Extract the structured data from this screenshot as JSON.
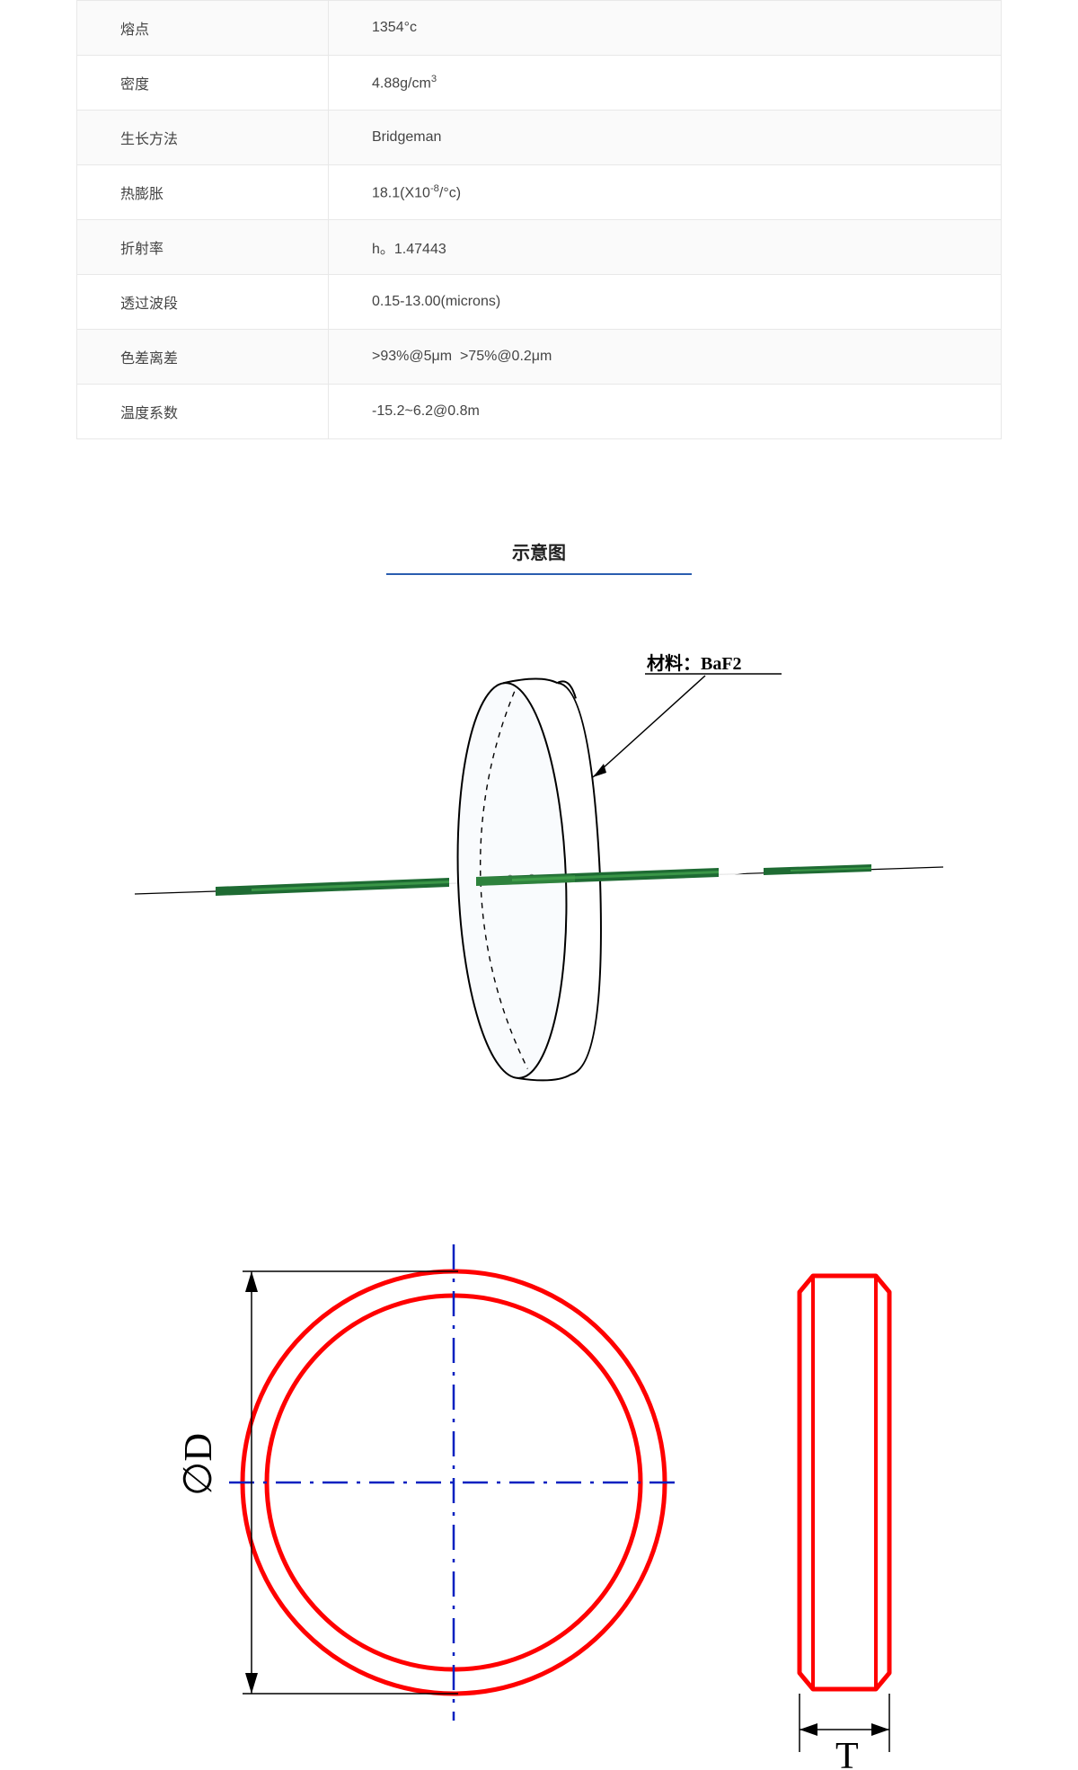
{
  "table": {
    "rows": [
      {
        "label": "熔点",
        "value_html": "1354°c"
      },
      {
        "label": "密度",
        "value_html": "4.88g/cm<sup>3</sup>"
      },
      {
        "label": "生长方法",
        "value_html": "Bridgeman"
      },
      {
        "label": "热膨胀",
        "value_html": "18.1(X10<sup>-8</sup>/°c)"
      },
      {
        "label": "折射率",
        "value_html": "h。1.47443"
      },
      {
        "label": "透过波段",
        "value_html": "0.15-13.00(microns)"
      },
      {
        "label": "色差离差",
        "value_html": ">93%@5μm&nbsp;&nbsp;>75%@0.2μm"
      },
      {
        "label": "温度系数",
        "value_html": "-15.2~6.2@0.8m"
      }
    ],
    "border_color": "#e8e8e8",
    "odd_row_bg": "#fafafa",
    "even_row_bg": "#ffffff",
    "text_color": "#444444"
  },
  "section": {
    "title": "示意图",
    "underline_color": "#2a5db0"
  },
  "diagram1": {
    "material_label": "材料：BaF2",
    "lens_outline_color": "#000000",
    "lens_fill_color": "#fafbfd",
    "lens_dash_color": "#000000",
    "beam_colors": {
      "dark": "#1c5c2b",
      "mid": "#2e7d32",
      "light": "#4caf50"
    },
    "arrow_color": "#000000",
    "label_text_color": "#000000"
  },
  "diagram2": {
    "circle_color": "#ff0000",
    "centerline_color": "#0020c0",
    "dim_color": "#000000",
    "label_D": "∅D",
    "label_T": "T",
    "font_family": "serif"
  }
}
